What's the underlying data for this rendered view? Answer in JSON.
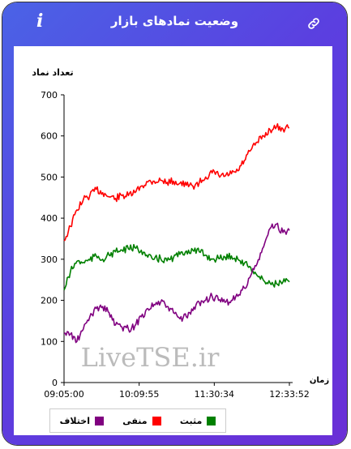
{
  "window": {
    "title": "وضعیت نمادهای بازار"
  },
  "chart_data": {
    "type": "line",
    "title": "",
    "ylabel": "تعداد نماد",
    "xlabel": "زمان",
    "ylim": [
      0,
      700
    ],
    "yticks": [
      "0",
      "100",
      "200",
      "300",
      "400",
      "500",
      "600",
      "700"
    ],
    "xticks": [
      "09:05:00",
      "10:09:55",
      "11:30:34",
      "12:33:52"
    ],
    "watermark": "LiveTSE.ir",
    "series": [
      {
        "name": "منفی",
        "color": "#ff0000",
        "values": [
          345,
          380,
          420,
          445,
          455,
          470,
          462,
          452,
          448,
          455,
          455,
          462,
          478,
          488,
          490,
          492,
          487,
          490,
          485,
          480,
          478,
          486,
          500,
          510,
          505,
          502,
          508,
          515,
          540,
          565,
          585,
          600,
          615,
          622,
          617,
          620
        ]
      },
      {
        "name": "مثبت",
        "color": "#008000",
        "values": [
          225,
          270,
          295,
          292,
          298,
          308,
          300,
          310,
          318,
          322,
          325,
          328,
          322,
          305,
          300,
          302,
          296,
          304,
          312,
          320,
          322,
          318,
          310,
          300,
          302,
          305,
          308,
          300,
          290,
          280,
          260,
          248,
          242,
          240,
          245,
          245
        ]
      },
      {
        "name": "اختلاف",
        "color": "#800080",
        "values": [
          120,
          118,
          100,
          130,
          160,
          180,
          185,
          170,
          140,
          135,
          130,
          138,
          160,
          180,
          190,
          195,
          185,
          170,
          155,
          160,
          175,
          195,
          200,
          210,
          200,
          195,
          200,
          210,
          230,
          260,
          290,
          330,
          375,
          385,
          365,
          370
        ]
      }
    ]
  },
  "legend": [
    {
      "label": "مثبت",
      "color": "#008000"
    },
    {
      "label": "منفی",
      "color": "#ff0000"
    },
    {
      "label": "اختلاف",
      "color": "#800080"
    }
  ],
  "icons": {
    "info": "i",
    "link": "link-icon"
  }
}
